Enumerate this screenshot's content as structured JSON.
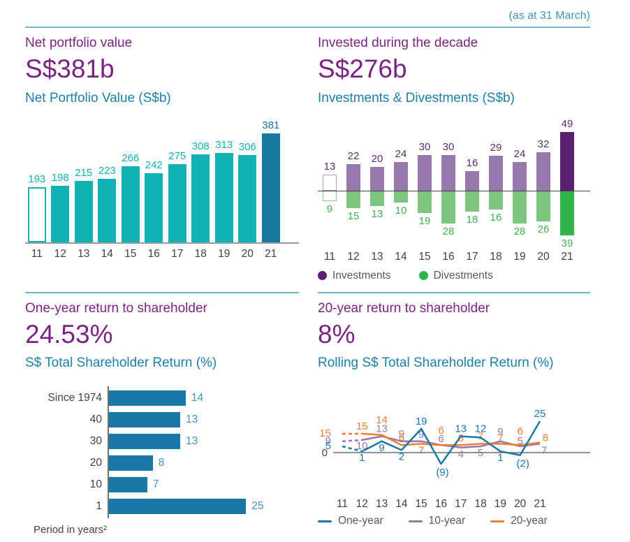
{
  "header": {
    "as_at": "(as at 31 March)"
  },
  "panels": {
    "npv": {
      "title": "Net portfolio value",
      "headline": "S$381b",
      "chart_title": "Net Portfolio Value (S$b)"
    },
    "invest": {
      "title": "Invested during the decade",
      "headline": "S$276b",
      "chart_title": "Investments & Divestments (S$b)"
    },
    "one_year": {
      "title": "One-year return to shareholder",
      "headline": "24.53%",
      "chart_title": "S$ Total Shareholder Return (%)",
      "footnote": "Period in years²"
    },
    "twenty_year": {
      "title": "20-year return to shareholder",
      "headline": "8%",
      "chart_title": "Rolling S$ Total Shareholder Return (%)"
    }
  },
  "colors": {
    "headline_purple": "#7b2382",
    "chart_title_teal": "#1c80a9",
    "as_at_teal": "#3a98bb",
    "divider_teal": "#72b6cc",
    "teal_bar": "#12b2b4",
    "dark_blue_bar": "#17799f",
    "investment_purple": "#9678ad",
    "investment_dark_purple": "#5c2071",
    "divestment_green": "#7ec47f",
    "divestment_dark_green": "#2fb44c",
    "blue_bar": "#1878a8",
    "blue_value_label": "#4593bf",
    "orange_line": "#ef7d33",
    "axis_gray": "#9b9b9b",
    "text_dark": "#414042",
    "legend_text": "#58595b"
  },
  "chart_data": [
    {
      "id": "net_portfolio_value",
      "type": "bar",
      "title": "Net Portfolio Value (S$b)",
      "categories": [
        "11",
        "12",
        "13",
        "14",
        "15",
        "16",
        "17",
        "18",
        "19",
        "20",
        "21"
      ],
      "values": [
        193,
        198,
        215,
        223,
        266,
        242,
        275,
        308,
        313,
        306,
        381
      ],
      "bar_styles": [
        "outline",
        "fill",
        "fill",
        "fill",
        "fill",
        "fill",
        "fill",
        "fill",
        "fill",
        "fill",
        "highlight"
      ],
      "ylim": [
        0,
        400
      ]
    },
    {
      "id": "investments_divestments",
      "type": "bar",
      "title": "Investments & Divestments (S$b)",
      "categories": [
        "11",
        "12",
        "13",
        "14",
        "15",
        "16",
        "17",
        "18",
        "19",
        "20",
        "21"
      ],
      "series": [
        {
          "name": "Investments",
          "direction": "up",
          "values": [
            13,
            22,
            20,
            24,
            30,
            30,
            16,
            29,
            24,
            32,
            49
          ]
        },
        {
          "name": "Divestments",
          "direction": "down",
          "values": [
            9,
            15,
            13,
            10,
            19,
            28,
            18,
            16,
            28,
            26,
            39
          ]
        }
      ],
      "bar_styles": [
        "outline",
        "fill",
        "fill",
        "fill",
        "fill",
        "fill",
        "fill",
        "fill",
        "fill",
        "fill",
        "highlight"
      ],
      "legend": [
        "Investments",
        "Divestments"
      ],
      "legend_colors": [
        "#5c2071",
        "#2fb44c"
      ],
      "ylim": [
        -45,
        55
      ]
    },
    {
      "id": "sd_total_shareholder_return",
      "type": "bar",
      "orientation": "horizontal",
      "title": "S$ Total Shareholder Return (%)",
      "categories": [
        "Since 1974",
        "40",
        "30",
        "20",
        "10",
        "1"
      ],
      "values": [
        14,
        13,
        13,
        8,
        7,
        25
      ],
      "xlim": [
        0,
        27
      ],
      "footnote": "Period in years²"
    },
    {
      "id": "rolling_sd_total_shareholder_return",
      "type": "line",
      "title": "Rolling S$ Total Shareholder Return (%)",
      "x": [
        "11",
        "12",
        "13",
        "14",
        "15",
        "16",
        "17",
        "18",
        "19",
        "20",
        "21"
      ],
      "zero_label": "0",
      "ylim": [
        -15,
        30
      ],
      "dashed_first_segment": true,
      "series": [
        {
          "name": "10-year",
          "color": "#9678ad",
          "values": [
            9,
            10,
            13,
            9,
            9,
            6,
            4,
            5,
            9,
            5,
            7
          ],
          "label_offsets": [
            [
              -16,
              4
            ],
            [
              0,
              13
            ],
            [
              0,
              -6
            ],
            [
              0,
              -6
            ],
            [
              0,
              -5
            ],
            [
              0,
              -4
            ],
            [
              0,
              14
            ],
            [
              0,
              14
            ],
            [
              0,
              -9
            ],
            [
              0,
              -3
            ],
            [
              6,
              14
            ]
          ]
        },
        {
          "name": "20-year",
          "color": "#ef7d33",
          "values": [
            15,
            15,
            14,
            6,
            7,
            6,
            6,
            7,
            7,
            6,
            8
          ],
          "label_offsets": [
            [
              -16,
              4
            ],
            [
              0,
              -6
            ],
            [
              0,
              -17
            ],
            [
              0,
              -6
            ],
            [
              0,
              14
            ],
            [
              0,
              -16
            ],
            [
              0,
              -5
            ],
            [
              0,
              -6
            ],
            [
              0,
              -4
            ],
            [
              0,
              -15
            ],
            [
              8,
              -2
            ]
          ]
        },
        {
          "name": "One-year",
          "color": "#1878a8",
          "values": [
            5,
            1,
            9,
            2,
            19,
            -9,
            13,
            12,
            1,
            -2,
            25
          ],
          "label_offsets": [
            [
              -16,
              4
            ],
            [
              0,
              14
            ],
            [
              0,
              14
            ],
            [
              0,
              14
            ],
            [
              0,
              -6
            ],
            [
              2,
              17
            ],
            [
              0,
              -6
            ],
            [
              0,
              -8
            ],
            [
              0,
              14
            ],
            [
              4,
              17
            ],
            [
              0,
              -6
            ]
          ]
        }
      ],
      "legend": [
        "One-year",
        "10-year",
        "20-year"
      ],
      "legend_colors": [
        "#1878a8",
        "#9678ad",
        "#ef7d33"
      ]
    }
  ]
}
